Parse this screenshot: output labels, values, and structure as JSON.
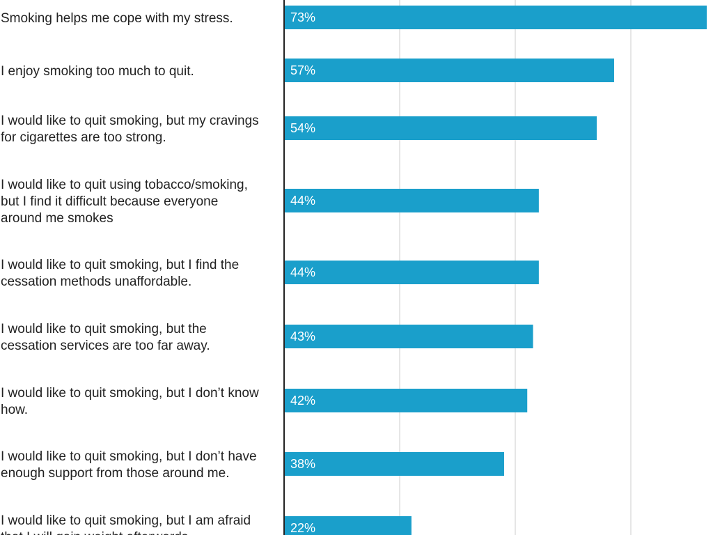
{
  "chart_data": {
    "type": "bar",
    "orientation": "horizontal",
    "categories": [
      [
        "Smoking helps me cope with my stress."
      ],
      [
        "I enjoy smoking too much to quit."
      ],
      [
        "I would like to quit smoking, but my cravings",
        "for cigarettes are too strong."
      ],
      [
        "I would like to quit using tobacco/smoking,",
        "but I find it difficult because everyone",
        "around me smokes"
      ],
      [
        "I would like to quit smoking, but I find the",
        "cessation methods unaffordable."
      ],
      [
        "I would like to quit smoking, but the",
        "cessation services are too far away."
      ],
      [
        "I would like to quit smoking, but I don’t know",
        "how."
      ],
      [
        "I would like to quit smoking, but I don’t have",
        "enough support from those around me."
      ],
      [
        "I would like to quit smoking, but I am afraid",
        "that I will gain weight afterwards."
      ]
    ],
    "values": [
      73,
      57,
      54,
      44,
      44,
      43,
      42,
      38,
      22
    ],
    "value_labels": [
      "73%",
      "57%",
      "54%",
      "44%",
      "44%",
      "43%",
      "42%",
      "38%",
      "22%"
    ],
    "xlim": [
      0,
      73
    ],
    "grid": true,
    "bar_color": "#1a9fcb",
    "grid_color": "#dddddd",
    "axis_color": "#222222"
  }
}
